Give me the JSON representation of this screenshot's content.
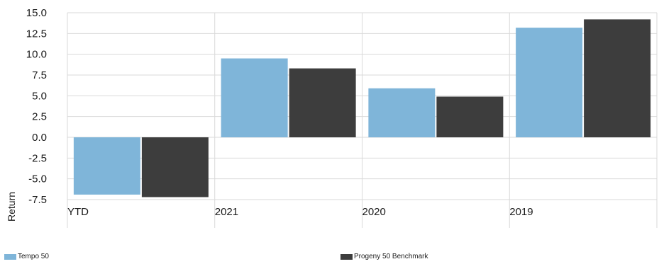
{
  "chart_data": {
    "type": "bar",
    "categories": [
      "YTD",
      "2021",
      "2020",
      "2019"
    ],
    "series": [
      {
        "name": "Tempo 50",
        "color": "#7fb5d9",
        "values": [
          -6.9,
          9.5,
          5.9,
          13.2
        ]
      },
      {
        "name": "Progeny 50 Benchmark",
        "color": "#3d3d3d",
        "values": [
          -7.2,
          8.3,
          4.9,
          14.2
        ]
      }
    ],
    "ylabel": "Return",
    "ylim": [
      -7.5,
      15.0
    ],
    "yticks": [
      "15.0",
      "12.5",
      "10.0",
      "7.5",
      "5.0",
      "2.5",
      "0.0",
      "-2.5",
      "-5.0",
      "-7.5"
    ],
    "grid": true,
    "legend": "bottom"
  }
}
